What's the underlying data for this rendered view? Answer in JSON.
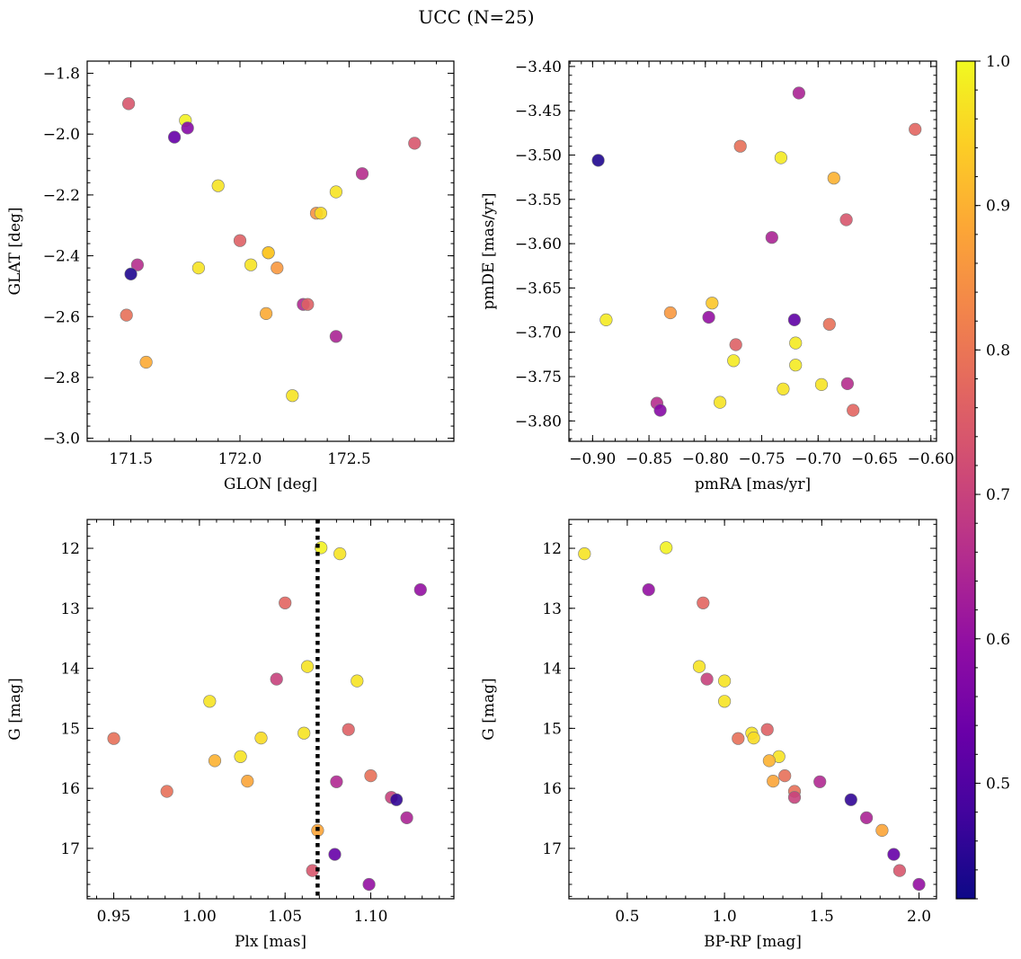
{
  "figure": {
    "title": "UCC (N=25)"
  },
  "colorbar": {
    "label": "",
    "min": 0.42,
    "max": 1.0,
    "ticks": [
      0.5,
      0.6,
      0.7,
      0.8,
      0.9,
      1.0
    ],
    "ticklabels": [
      "0.5",
      "0.6",
      "0.7",
      "0.8",
      "0.9",
      "1.0"
    ],
    "colormap": "plasma"
  },
  "chart_data": [
    {
      "id": "glon_glat",
      "type": "scatter",
      "xlabel": "GLON [deg]",
      "ylabel": "GLAT [deg]",
      "xlim": [
        171.3,
        172.98
      ],
      "ylim": [
        -3.01,
        -1.76
      ],
      "xticks": [
        171.5,
        172.0,
        172.5
      ],
      "xticklabels": [
        "171.5",
        "172.0",
        "172.5"
      ],
      "yticks": [
        -3.0,
        -2.8,
        -2.6,
        -2.4,
        -2.2,
        -2.0,
        -1.8
      ],
      "yticklabels": [
        "−3.0",
        "−2.8",
        "−2.6",
        "−2.4",
        "−2.2",
        "−2.0",
        "−1.8"
      ],
      "invert_y": false,
      "points": [
        {
          "x": 171.49,
          "y": -1.9,
          "c": 0.74
        },
        {
          "x": 171.75,
          "y": -1.955,
          "c": 0.99
        },
        {
          "x": 171.7,
          "y": -2.01,
          "c": 0.53
        },
        {
          "x": 171.76,
          "y": -1.98,
          "c": 0.58
        },
        {
          "x": 172.8,
          "y": -2.03,
          "c": 0.74
        },
        {
          "x": 172.56,
          "y": -2.13,
          "c": 0.66
        },
        {
          "x": 171.9,
          "y": -2.17,
          "c": 0.97
        },
        {
          "x": 172.44,
          "y": -2.19,
          "c": 0.97
        },
        {
          "x": 172.35,
          "y": -2.26,
          "c": 0.85
        },
        {
          "x": 172.37,
          "y": -2.26,
          "c": 0.96
        },
        {
          "x": 172.0,
          "y": -2.35,
          "c": 0.76
        },
        {
          "x": 172.13,
          "y": -2.39,
          "c": 0.93
        },
        {
          "x": 171.53,
          "y": -2.43,
          "c": 0.66
        },
        {
          "x": 172.05,
          "y": -2.43,
          "c": 0.97
        },
        {
          "x": 171.81,
          "y": -2.44,
          "c": 0.97
        },
        {
          "x": 172.17,
          "y": -2.44,
          "c": 0.86
        },
        {
          "x": 171.5,
          "y": -2.46,
          "c": 0.44
        },
        {
          "x": 172.29,
          "y": -2.56,
          "c": 0.65
        },
        {
          "x": 172.31,
          "y": -2.56,
          "c": 0.76
        },
        {
          "x": 171.48,
          "y": -2.595,
          "c": 0.79
        },
        {
          "x": 172.12,
          "y": -2.59,
          "c": 0.89
        },
        {
          "x": 172.44,
          "y": -2.665,
          "c": 0.64
        },
        {
          "x": 171.57,
          "y": -2.75,
          "c": 0.89
        },
        {
          "x": 172.24,
          "y": -2.86,
          "c": 0.97
        },
        {
          "x": 172.13,
          "y": -2.39,
          "c": 0.93
        }
      ]
    },
    {
      "id": "pmra_pmde",
      "type": "scatter",
      "xlabel": "pmRA [mas/yr]",
      "ylabel": "pmDE [mas/yr]",
      "xlim": [
        -0.921,
        -0.595
      ],
      "ylim": [
        -3.823,
        -3.394
      ],
      "xticks": [
        -0.9,
        -0.85,
        -0.8,
        -0.75,
        -0.7,
        -0.65,
        -0.6
      ],
      "xticklabels": [
        "−0.90",
        "−0.85",
        "−0.80",
        "−0.75",
        "−0.70",
        "−0.65",
        "−0.60"
      ],
      "yticks": [
        -3.8,
        -3.75,
        -3.7,
        -3.65,
        -3.6,
        -3.55,
        -3.5,
        -3.45,
        -3.4
      ],
      "yticklabels": [
        "−3.80",
        "−3.75",
        "−3.70",
        "−3.65",
        "−3.60",
        "−3.55",
        "−3.50",
        "−3.45",
        "−3.40"
      ],
      "invert_y": false,
      "points": [
        {
          "x": -0.717,
          "y": -3.43,
          "c": 0.64
        },
        {
          "x": -0.614,
          "y": -3.471,
          "c": 0.77
        },
        {
          "x": -0.895,
          "y": -3.506,
          "c": 0.44
        },
        {
          "x": -0.769,
          "y": -3.49,
          "c": 0.79
        },
        {
          "x": -0.733,
          "y": -3.503,
          "c": 0.98
        },
        {
          "x": -0.686,
          "y": -3.526,
          "c": 0.9
        },
        {
          "x": -0.675,
          "y": -3.573,
          "c": 0.74
        },
        {
          "x": -0.741,
          "y": -3.593,
          "c": 0.64
        },
        {
          "x": -0.888,
          "y": -3.686,
          "c": 0.98
        },
        {
          "x": -0.831,
          "y": -3.678,
          "c": 0.86
        },
        {
          "x": -0.794,
          "y": -3.667,
          "c": 0.93
        },
        {
          "x": -0.797,
          "y": -3.683,
          "c": 0.6
        },
        {
          "x": -0.721,
          "y": -3.686,
          "c": 0.52
        },
        {
          "x": -0.69,
          "y": -3.691,
          "c": 0.79
        },
        {
          "x": -0.773,
          "y": -3.714,
          "c": 0.76
        },
        {
          "x": -0.72,
          "y": -3.712,
          "c": 0.98
        },
        {
          "x": -0.775,
          "y": -3.732,
          "c": 0.98
        },
        {
          "x": -0.72,
          "y": -3.737,
          "c": 0.98
        },
        {
          "x": -0.674,
          "y": -3.758,
          "c": 0.66
        },
        {
          "x": -0.697,
          "y": -3.759,
          "c": 0.97
        },
        {
          "x": -0.731,
          "y": -3.764,
          "c": 0.97
        },
        {
          "x": -0.787,
          "y": -3.779,
          "c": 0.97
        },
        {
          "x": -0.843,
          "y": -3.78,
          "c": 0.66
        },
        {
          "x": -0.84,
          "y": -3.788,
          "c": 0.58
        },
        {
          "x": -0.669,
          "y": -3.788,
          "c": 0.77
        }
      ]
    },
    {
      "id": "plx_g",
      "type": "scatter",
      "xlabel": "Plx [mas]",
      "ylabel": "G [mag]",
      "xlim": [
        0.9345,
        1.1485
      ],
      "ylim": [
        11.52,
        17.84
      ],
      "xticks": [
        0.95,
        1.0,
        1.05,
        1.1
      ],
      "xticklabels": [
        "0.95",
        "1.00",
        "1.05",
        "1.10"
      ],
      "yticks": [
        12,
        13,
        14,
        15,
        16,
        17
      ],
      "yticklabels": [
        "12",
        "13",
        "14",
        "15",
        "16",
        "17"
      ],
      "invert_y": true,
      "vline": {
        "x": 1.069,
        "style": "dotted",
        "color": "#000000"
      },
      "points": [
        {
          "x": 1.071,
          "y": 11.99,
          "c": 0.99
        },
        {
          "x": 1.082,
          "y": 12.09,
          "c": 0.97
        },
        {
          "x": 1.129,
          "y": 12.69,
          "c": 0.6
        },
        {
          "x": 1.05,
          "y": 12.91,
          "c": 0.77
        },
        {
          "x": 1.063,
          "y": 13.97,
          "c": 0.97
        },
        {
          "x": 1.045,
          "y": 14.18,
          "c": 0.7
        },
        {
          "x": 1.092,
          "y": 14.21,
          "c": 0.97
        },
        {
          "x": 1.006,
          "y": 14.55,
          "c": 0.97
        },
        {
          "x": 1.087,
          "y": 15.02,
          "c": 0.76
        },
        {
          "x": 1.061,
          "y": 15.08,
          "c": 0.97
        },
        {
          "x": 0.95,
          "y": 15.17,
          "c": 0.79
        },
        {
          "x": 1.036,
          "y": 15.16,
          "c": 0.96
        },
        {
          "x": 1.024,
          "y": 15.47,
          "c": 0.97
        },
        {
          "x": 1.009,
          "y": 15.54,
          "c": 0.9
        },
        {
          "x": 1.1,
          "y": 15.79,
          "c": 0.79
        },
        {
          "x": 1.028,
          "y": 15.88,
          "c": 0.88
        },
        {
          "x": 1.08,
          "y": 15.89,
          "c": 0.65
        },
        {
          "x": 0.981,
          "y": 16.05,
          "c": 0.79
        },
        {
          "x": 1.112,
          "y": 16.15,
          "c": 0.7
        },
        {
          "x": 1.115,
          "y": 16.19,
          "c": 0.46
        },
        {
          "x": 1.121,
          "y": 16.49,
          "c": 0.64
        },
        {
          "x": 1.069,
          "y": 16.7,
          "c": 0.88
        },
        {
          "x": 1.079,
          "y": 17.1,
          "c": 0.53
        },
        {
          "x": 1.066,
          "y": 17.37,
          "c": 0.74
        },
        {
          "x": 1.099,
          "y": 17.6,
          "c": 0.6
        }
      ]
    },
    {
      "id": "bprp_g",
      "type": "scatter",
      "xlabel": "BP-RP [mag]",
      "ylabel": "G [mag]",
      "xlim": [
        0.2,
        2.09
      ],
      "ylim": [
        11.52,
        17.84
      ],
      "xticks": [
        0.5,
        1.0,
        1.5,
        2.0
      ],
      "xticklabels": [
        "0.5",
        "1.0",
        "1.5",
        "2.0"
      ],
      "yticks": [
        12,
        13,
        14,
        15,
        16,
        17
      ],
      "yticklabels": [
        "12",
        "13",
        "14",
        "15",
        "16",
        "17"
      ],
      "invert_y": true,
      "points": [
        {
          "x": 0.28,
          "y": 12.09,
          "c": 0.97
        },
        {
          "x": 0.7,
          "y": 11.99,
          "c": 0.99
        },
        {
          "x": 0.61,
          "y": 12.69,
          "c": 0.6
        },
        {
          "x": 0.89,
          "y": 12.91,
          "c": 0.77
        },
        {
          "x": 0.87,
          "y": 13.97,
          "c": 0.97
        },
        {
          "x": 0.91,
          "y": 14.18,
          "c": 0.7
        },
        {
          "x": 1.0,
          "y": 14.21,
          "c": 0.97
        },
        {
          "x": 1.0,
          "y": 14.55,
          "c": 0.97
        },
        {
          "x": 1.22,
          "y": 15.02,
          "c": 0.76
        },
        {
          "x": 1.14,
          "y": 15.08,
          "c": 0.97
        },
        {
          "x": 1.07,
          "y": 15.17,
          "c": 0.79
        },
        {
          "x": 1.15,
          "y": 15.16,
          "c": 0.96
        },
        {
          "x": 1.28,
          "y": 15.47,
          "c": 0.97
        },
        {
          "x": 1.23,
          "y": 15.54,
          "c": 0.9
        },
        {
          "x": 1.31,
          "y": 15.79,
          "c": 0.79
        },
        {
          "x": 1.25,
          "y": 15.88,
          "c": 0.88
        },
        {
          "x": 1.49,
          "y": 15.89,
          "c": 0.65
        },
        {
          "x": 1.36,
          "y": 16.05,
          "c": 0.79
        },
        {
          "x": 1.36,
          "y": 16.15,
          "c": 0.7
        },
        {
          "x": 1.65,
          "y": 16.19,
          "c": 0.46
        },
        {
          "x": 1.73,
          "y": 16.49,
          "c": 0.64
        },
        {
          "x": 1.81,
          "y": 16.7,
          "c": 0.88
        },
        {
          "x": 1.87,
          "y": 17.1,
          "c": 0.53
        },
        {
          "x": 1.9,
          "y": 17.37,
          "c": 0.74
        },
        {
          "x": 2.0,
          "y": 17.6,
          "c": 0.6
        }
      ]
    }
  ]
}
